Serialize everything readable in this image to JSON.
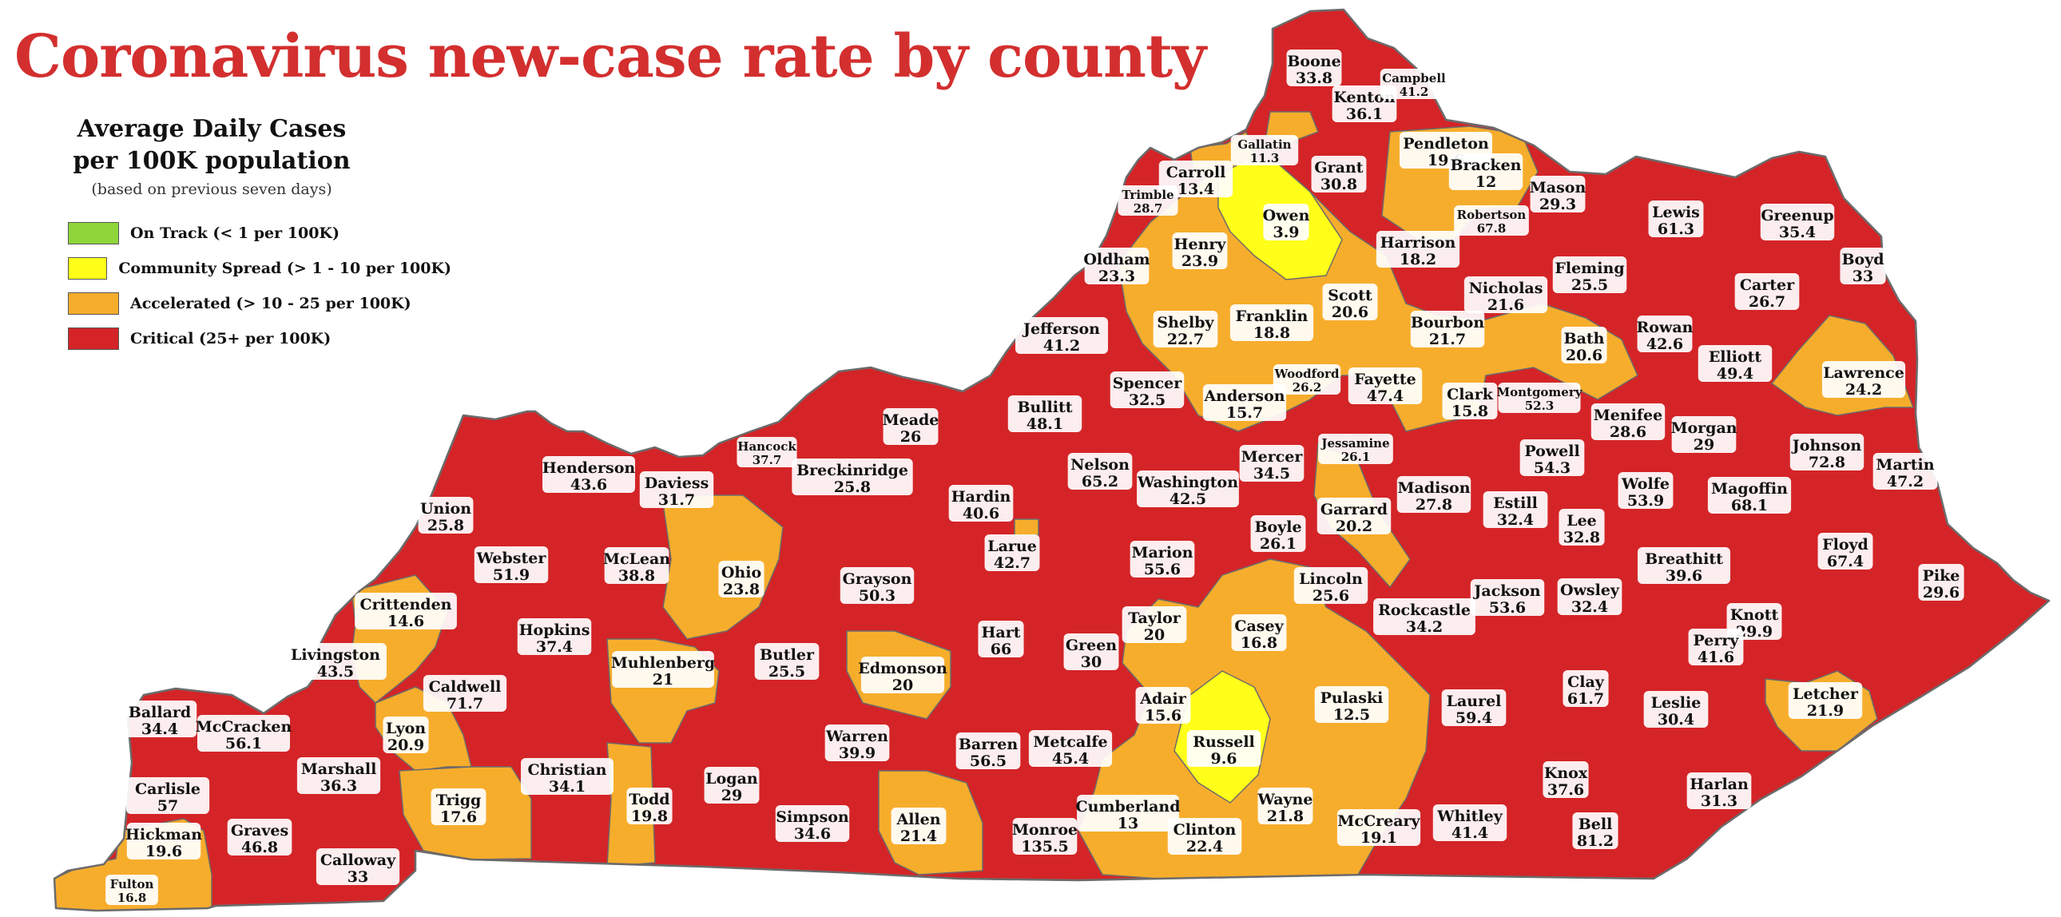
{
  "title": "Coronavirus new-case rate by county",
  "legend": {
    "title_line1": "Average Daily Cases",
    "title_line2": "per 100K population",
    "subtitle": "(based on previous seven days)",
    "items": [
      {
        "label": "On Track (< 1 per 100K)",
        "color": "#8fd63a"
      },
      {
        "label": "Community Spread (> 1 - 10 per 100K)",
        "color": "#ffff1a"
      },
      {
        "label": "Accelerated (> 10 - 25 per 100K)",
        "color": "#f7ad2c"
      },
      {
        "label": "Critical (25+ per 100K)",
        "color": "#d42427"
      }
    ]
  },
  "colors": {
    "on_track": "#8fd63a",
    "community": "#ffff1a",
    "accelerated": "#f7ad2c",
    "critical": "#d42427",
    "border": "#6b6b6b"
  },
  "counties": [
    {
      "name": "Boone",
      "value": "33.8",
      "level": "critical"
    },
    {
      "name": "Kenton",
      "value": "36.1",
      "level": "critical"
    },
    {
      "name": "Campbell",
      "value": "41.2",
      "level": "critical"
    },
    {
      "name": "Gallatin",
      "value": "11.3",
      "level": "accelerated"
    },
    {
      "name": "Grant",
      "value": "30.8",
      "level": "critical"
    },
    {
      "name": "Pendleton",
      "value": "19.6",
      "level": "accelerated"
    },
    {
      "name": "Bracken",
      "value": "12",
      "level": "accelerated"
    },
    {
      "name": "Carroll",
      "value": "13.4",
      "level": "accelerated"
    },
    {
      "name": "Trimble",
      "value": "28.7",
      "level": "critical"
    },
    {
      "name": "Owen",
      "value": "3.9",
      "level": "community"
    },
    {
      "name": "Robertson",
      "value": "67.8",
      "level": "critical"
    },
    {
      "name": "Mason",
      "value": "29.3",
      "level": "critical"
    },
    {
      "name": "Lewis",
      "value": "61.3",
      "level": "critical"
    },
    {
      "name": "Greenup",
      "value": "35.4",
      "level": "critical"
    },
    {
      "name": "Boyd",
      "value": "33",
      "level": "critical"
    },
    {
      "name": "Henry",
      "value": "23.9",
      "level": "accelerated"
    },
    {
      "name": "Harrison",
      "value": "18.2",
      "level": "accelerated"
    },
    {
      "name": "Oldham",
      "value": "23.3",
      "level": "accelerated"
    },
    {
      "name": "Fleming",
      "value": "25.5",
      "level": "critical"
    },
    {
      "name": "Carter",
      "value": "26.7",
      "level": "critical"
    },
    {
      "name": "Scott",
      "value": "20.6",
      "level": "accelerated"
    },
    {
      "name": "Nicholas",
      "value": "21.6",
      "level": "accelerated"
    },
    {
      "name": "Franklin",
      "value": "18.8",
      "level": "accelerated"
    },
    {
      "name": "Shelby",
      "value": "22.7",
      "level": "accelerated"
    },
    {
      "name": "Jefferson",
      "value": "41.2",
      "level": "critical"
    },
    {
      "name": "Bourbon",
      "value": "21.7",
      "level": "accelerated"
    },
    {
      "name": "Bath",
      "value": "20.6",
      "level": "accelerated"
    },
    {
      "name": "Rowan",
      "value": "42.6",
      "level": "critical"
    },
    {
      "name": "Elliott",
      "value": "49.4",
      "level": "critical"
    },
    {
      "name": "Lawrence",
      "value": "24.2",
      "level": "accelerated"
    },
    {
      "name": "Woodford",
      "value": "26.2",
      "level": "critical"
    },
    {
      "name": "Fayette",
      "value": "47.4",
      "level": "critical"
    },
    {
      "name": "Spencer",
      "value": "32.5",
      "level": "critical"
    },
    {
      "name": "Anderson",
      "value": "15.7",
      "level": "accelerated"
    },
    {
      "name": "Clark",
      "value": "15.8",
      "level": "accelerated"
    },
    {
      "name": "Montgomery",
      "value": "52.3",
      "level": "critical"
    },
    {
      "name": "Menifee",
      "value": "28.6",
      "level": "critical"
    },
    {
      "name": "Morgan",
      "value": "29",
      "level": "critical"
    },
    {
      "name": "Johnson",
      "value": "72.8",
      "level": "critical"
    },
    {
      "name": "Meade",
      "value": "26",
      "level": "critical"
    },
    {
      "name": "Bullitt",
      "value": "48.1",
      "level": "critical"
    },
    {
      "name": "Hancock",
      "value": "37.7",
      "level": "critical"
    },
    {
      "name": "Jessamine",
      "value": "26.1",
      "level": "critical"
    },
    {
      "name": "Mercer",
      "value": "34.5",
      "level": "critical"
    },
    {
      "name": "Powell",
      "value": "54.3",
      "level": "critical"
    },
    {
      "name": "Martin",
      "value": "47.2",
      "level": "critical"
    },
    {
      "name": "Henderson",
      "value": "43.6",
      "level": "critical"
    },
    {
      "name": "Breckinridge",
      "value": "25.8",
      "level": "critical"
    },
    {
      "name": "Nelson",
      "value": "65.2",
      "level": "critical"
    },
    {
      "name": "Washington",
      "value": "42.5",
      "level": "critical"
    },
    {
      "name": "Madison",
      "value": "27.8",
      "level": "critical"
    },
    {
      "name": "Wolfe",
      "value": "53.9",
      "level": "critical"
    },
    {
      "name": "Magoffin",
      "value": "68.1",
      "level": "critical"
    },
    {
      "name": "Daviess",
      "value": "31.7",
      "level": "critical"
    },
    {
      "name": "Union",
      "value": "25.8",
      "level": "critical"
    },
    {
      "name": "Hardin",
      "value": "40.6",
      "level": "critical"
    },
    {
      "name": "Garrard",
      "value": "20.2",
      "level": "accelerated"
    },
    {
      "name": "Estill",
      "value": "32.4",
      "level": "critical"
    },
    {
      "name": "Boyle",
      "value": "26.1",
      "level": "critical"
    },
    {
      "name": "Lee",
      "value": "32.8",
      "level": "critical"
    },
    {
      "name": "Webster",
      "value": "51.9",
      "level": "critical"
    },
    {
      "name": "McLean",
      "value": "38.8",
      "level": "critical"
    },
    {
      "name": "Larue",
      "value": "42.7",
      "level": "critical"
    },
    {
      "name": "Marion",
      "value": "55.6",
      "level": "critical"
    },
    {
      "name": "Breathitt",
      "value": "39.6",
      "level": "critical"
    },
    {
      "name": "Floyd",
      "value": "67.4",
      "level": "critical"
    },
    {
      "name": "Ohio",
      "value": "23.8",
      "level": "accelerated"
    },
    {
      "name": "Lincoln",
      "value": "25.6",
      "level": "critical"
    },
    {
      "name": "Grayson",
      "value": "50.3",
      "level": "critical"
    },
    {
      "name": "Crittenden",
      "value": "14.6",
      "level": "accelerated"
    },
    {
      "name": "Jackson",
      "value": "53.6",
      "level": "critical"
    },
    {
      "name": "Owsley",
      "value": "32.4",
      "level": "critical"
    },
    {
      "name": "Pike",
      "value": "29.6",
      "level": "critical"
    },
    {
      "name": "Taylor",
      "value": "20",
      "level": "accelerated"
    },
    {
      "name": "Rockcastle",
      "value": "34.2",
      "level": "critical"
    },
    {
      "name": "Hopkins",
      "value": "37.4",
      "level": "critical"
    },
    {
      "name": "Casey",
      "value": "16.8",
      "level": "accelerated"
    },
    {
      "name": "Hart",
      "value": "66",
      "level": "critical"
    },
    {
      "name": "Knott",
      "value": "29.9",
      "level": "critical"
    },
    {
      "name": "Perry",
      "value": "41.6",
      "level": "critical"
    },
    {
      "name": "Livingston",
      "value": "43.5",
      "level": "critical"
    },
    {
      "name": "Green",
      "value": "30",
      "level": "critical"
    },
    {
      "name": "Muhlenberg",
      "value": "21",
      "level": "accelerated"
    },
    {
      "name": "Butler",
      "value": "25.5",
      "level": "critical"
    },
    {
      "name": "Caldwell",
      "value": "71.7",
      "level": "critical"
    },
    {
      "name": "Edmonson",
      "value": "20",
      "level": "accelerated"
    },
    {
      "name": "Adair",
      "value": "15.6",
      "level": "accelerated"
    },
    {
      "name": "Clay",
      "value": "61.7",
      "level": "critical"
    },
    {
      "name": "Pulaski",
      "value": "12.5",
      "level": "accelerated"
    },
    {
      "name": "Leslie",
      "value": "30.4",
      "level": "critical"
    },
    {
      "name": "Laurel",
      "value": "59.4",
      "level": "critical"
    },
    {
      "name": "Letcher",
      "value": "21.9",
      "level": "accelerated"
    },
    {
      "name": "Ballard",
      "value": "34.4",
      "level": "critical"
    },
    {
      "name": "McCracken",
      "value": "56.1",
      "level": "critical"
    },
    {
      "name": "Lyon",
      "value": "20.9",
      "level": "accelerated"
    },
    {
      "name": "Russell",
      "value": "9.6",
      "level": "community"
    },
    {
      "name": "Warren",
      "value": "39.9",
      "level": "critical"
    },
    {
      "name": "Barren",
      "value": "56.5",
      "level": "critical"
    },
    {
      "name": "Metcalfe",
      "value": "45.4",
      "level": "critical"
    },
    {
      "name": "Marshall",
      "value": "36.3",
      "level": "critical"
    },
    {
      "name": "Christian",
      "value": "34.1",
      "level": "critical"
    },
    {
      "name": "Logan",
      "value": "29",
      "level": "critical"
    },
    {
      "name": "Carlisle",
      "value": "57",
      "level": "critical"
    },
    {
      "name": "Trigg",
      "value": "17.6",
      "level": "accelerated"
    },
    {
      "name": "Knox",
      "value": "37.6",
      "level": "critical"
    },
    {
      "name": "Harlan",
      "value": "31.3",
      "level": "critical"
    },
    {
      "name": "Todd",
      "value": "19.8",
      "level": "accelerated"
    },
    {
      "name": "Wayne",
      "value": "21.8",
      "level": "accelerated"
    },
    {
      "name": "Cumberland",
      "value": "13",
      "level": "accelerated"
    },
    {
      "name": "Simpson",
      "value": "34.6",
      "level": "critical"
    },
    {
      "name": "Allen",
      "value": "21.4",
      "level": "accelerated"
    },
    {
      "name": "Whitley",
      "value": "41.4",
      "level": "critical"
    },
    {
      "name": "Bell",
      "value": "81.2",
      "level": "critical"
    },
    {
      "name": "McCreary",
      "value": "19.1",
      "level": "accelerated"
    },
    {
      "name": "Hickman",
      "value": "19.6",
      "level": "accelerated"
    },
    {
      "name": "Graves",
      "value": "46.8",
      "level": "critical"
    },
    {
      "name": "Monroe",
      "value": "135.5",
      "level": "critical"
    },
    {
      "name": "Clinton",
      "value": "22.4",
      "level": "accelerated"
    },
    {
      "name": "Calloway",
      "value": "33",
      "level": "critical"
    },
    {
      "name": "Fulton",
      "value": "16.8",
      "level": "accelerated"
    }
  ]
}
